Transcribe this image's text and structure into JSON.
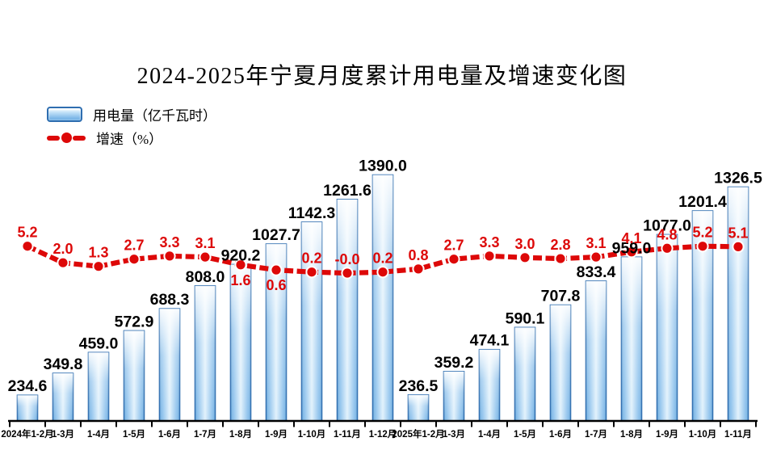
{
  "title": "2024-2025年宁夏月度累计用电量及增速变化图",
  "legend": {
    "bar_label": "用电量（亿千瓦时）",
    "line_label": "增速（%）"
  },
  "colors": {
    "bar_fill_edge": "#74B0E0",
    "bar_fill_center": "#E2F2FC",
    "bar_border": "#2F6EB0",
    "line_red": "#DD0808",
    "text_black": "#000000"
  },
  "chart_data": {
    "type": "combo",
    "title": "2024-2025年宁夏月度累计用电量及增速变化图",
    "categories": [
      "2024年1-2月",
      "1-3月",
      "1-4月",
      "1-5月",
      "1-6月",
      "1-7月",
      "1-8月",
      "1-9月",
      "1-10月",
      "1-11月",
      "1-12月",
      "2025年1-2月",
      "1-3月",
      "1-4月",
      "1-5月",
      "1-6月",
      "1-7月",
      "1-8月",
      "1-9月",
      "1-10月",
      "1-11月"
    ],
    "series": [
      {
        "name": "用电量（亿千瓦时）",
        "type": "bar",
        "unit": "亿千瓦时",
        "values": [
          234.6,
          349.8,
          459.0,
          572.9,
          688.3,
          808.0,
          920.2,
          1027.7,
          1142.3,
          1261.6,
          1390.0,
          236.5,
          359.2,
          474.1,
          590.1,
          707.8,
          833.4,
          959.0,
          1077.0,
          1201.4,
          1326.5
        ]
      },
      {
        "name": "增速（%）",
        "type": "line",
        "unit": "%",
        "values": [
          5.2,
          2.0,
          1.3,
          2.7,
          3.3,
          3.1,
          1.6,
          0.6,
          0.2,
          -0.0,
          0.2,
          0.8,
          2.7,
          3.3,
          3.0,
          2.8,
          3.1,
          4.1,
          4.8,
          5.2,
          5.1
        ],
        "value_labels": [
          "5.2",
          "2.0",
          "1.3",
          "2.7",
          "3.3",
          "3.1",
          "1.6",
          "0.6",
          "0.2",
          "-0.0",
          "0.2",
          "0.8",
          "2.7",
          "3.3",
          "3.0",
          "2.8",
          "3.1",
          "4.1",
          "4.8",
          "5.2",
          "5.1"
        ],
        "labels_below_indices": [
          6,
          7
        ]
      }
    ],
    "grid": false,
    "legend_position": "top-left",
    "value_axis_visible": false,
    "data_labels_shown": true
  }
}
